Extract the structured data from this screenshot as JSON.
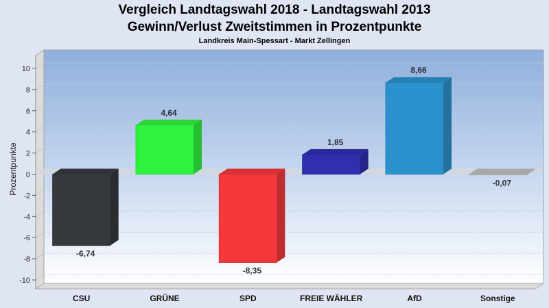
{
  "chart_data": {
    "type": "bar",
    "title": "Vergleich Landtagswahl 2018 - Landtagswahl 2013",
    "subtitle": "Gewinn/Verlust Zweitstimmen in Prozentpunkte",
    "subsubtitle": "Landkreis Main-Spessart - Markt Zellingen",
    "xlabel": "",
    "ylabel": "Prozentpunkte",
    "ylim": [
      -10,
      10
    ],
    "yticks": [
      10,
      8,
      6,
      4,
      2,
      0,
      -2,
      -4,
      -6,
      -8,
      -10
    ],
    "ytick_labels": [
      "10",
      "8",
      "6",
      "4",
      "2",
      "0",
      "-2",
      "-4",
      "-6",
      "-8",
      "-10"
    ],
    "grid": true,
    "categories": [
      "CSU",
      "GRÜNE",
      "SPD",
      "FREIE WÄHLER",
      "AfD",
      "Sonstige"
    ],
    "values": [
      -6.74,
      4.64,
      -8.35,
      1.85,
      8.66,
      -0.07
    ],
    "value_labels": [
      "-6,74",
      "4,64",
      "-8,35",
      "1,85",
      "8,66",
      "-0,07"
    ],
    "colors": [
      "#36393e",
      "#2ff23f",
      "#f5383c",
      "#2f2fb0",
      "#2b91cc",
      "#c0c0c0"
    ]
  }
}
